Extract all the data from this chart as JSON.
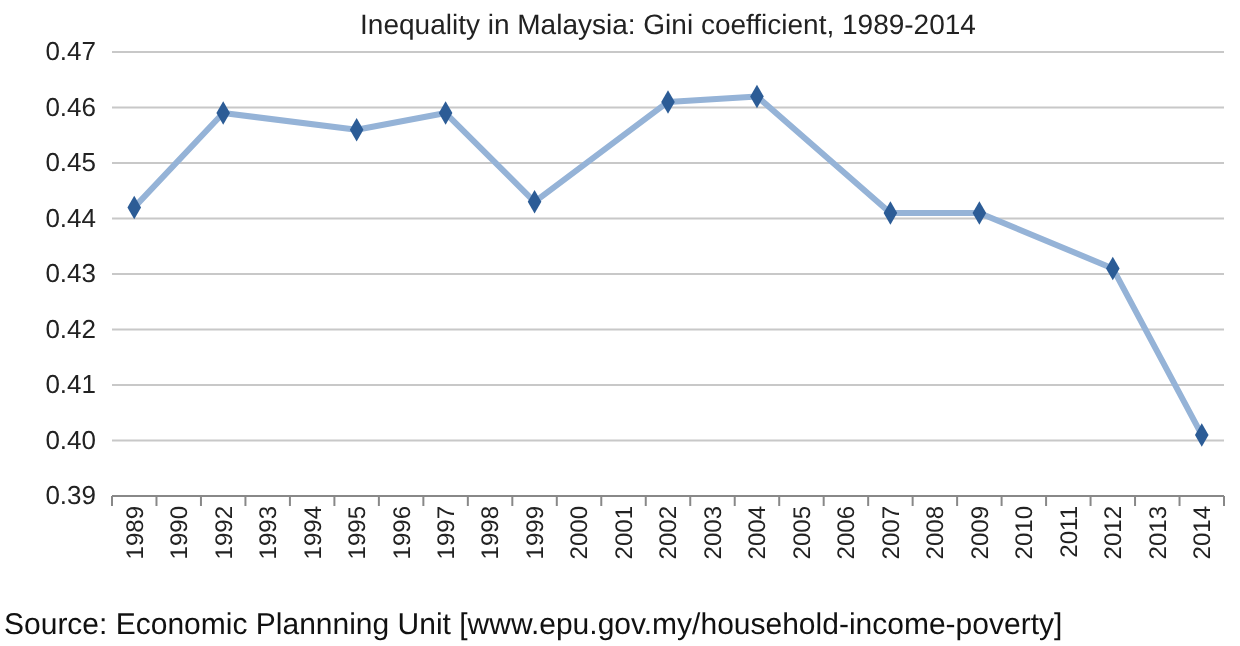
{
  "chart_data": {
    "type": "line",
    "title": "Inequality in Malaysia: Gini coefficient, 1989-2014",
    "categories": [
      "1989",
      "1990",
      "1992",
      "1993",
      "1994",
      "1995",
      "1996",
      "1997",
      "1998",
      "1999",
      "2000",
      "2001",
      "2002",
      "2003",
      "2004",
      "2005",
      "2006",
      "2007",
      "2008",
      "2009",
      "2010",
      "2011",
      "2012",
      "2013",
      "2014"
    ],
    "series": [
      {
        "color": "#95b3d7",
        "values": [
          0.442,
          null,
          0.459,
          null,
          null,
          0.456,
          null,
          0.459,
          null,
          0.443,
          null,
          null,
          0.461,
          null,
          0.462,
          null,
          null,
          0.441,
          null,
          0.441,
          null,
          null,
          0.431,
          null,
          0.401
        ]
      }
    ],
    "ylim": [
      0.39,
      0.47
    ],
    "yticks": [
      {
        "value": 0.39,
        "label": "0.39"
      },
      {
        "value": 0.4,
        "label": "0.40"
      },
      {
        "value": 0.41,
        "label": "0.41"
      },
      {
        "value": 0.42,
        "label": "0.42"
      },
      {
        "value": 0.43,
        "label": "0.43"
      },
      {
        "value": 0.44,
        "label": "0.44"
      },
      {
        "value": 0.45,
        "label": "0.45"
      },
      {
        "value": 0.46,
        "label": "0.46"
      },
      {
        "value": 0.47,
        "label": "0.47"
      }
    ],
    "grid": "y",
    "marker": "diamond",
    "annotations": [
      "Source: Economic Plannning Unit [www.epu.gov.my/household-income-poverty]"
    ]
  }
}
